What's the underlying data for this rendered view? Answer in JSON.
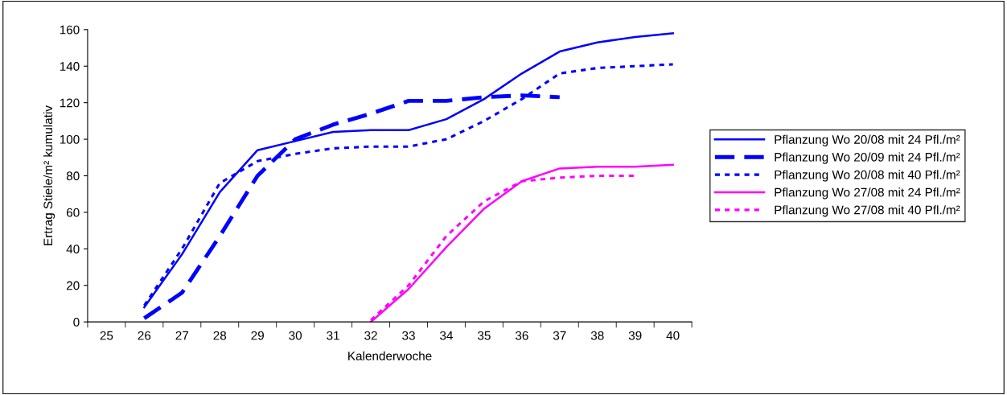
{
  "chart_data": {
    "type": "line",
    "xlabel": "Kalenderwoche",
    "ylabel": "Ertrag Stiele/m² kumulativ",
    "categories": [
      "25",
      "26",
      "27",
      "28",
      "29",
      "30",
      "31",
      "32",
      "33",
      "34",
      "35",
      "36",
      "37",
      "38",
      "39",
      "40"
    ],
    "ylim": [
      0,
      160
    ],
    "yticks": [
      0,
      20,
      40,
      60,
      80,
      100,
      120,
      140,
      160
    ],
    "grid": false,
    "legend": "right",
    "marker": "none",
    "series": [
      {
        "name": "Pflanzung Wo 20/08 mit 24 Pfl./m²",
        "color": "#0000ff",
        "line_style": "solid",
        "values": [
          null,
          8,
          37,
          71,
          94,
          99,
          104,
          105,
          105,
          111,
          122,
          136,
          148,
          153,
          156,
          158
        ]
      },
      {
        "name": "Pflanzung Wo 20/09 mit 24 Pfl./m²",
        "color": "#0000ff",
        "line_style": "dashed",
        "values": [
          null,
          2,
          16,
          47,
          80,
          100,
          108,
          114,
          121,
          121,
          123,
          124,
          123,
          null,
          null,
          null
        ]
      },
      {
        "name": "Pflanzung Wo 20/08 mit 40 Pfl./m²",
        "color": "#0000ff",
        "line_style": "dotted",
        "values": [
          null,
          9,
          40,
          76,
          88,
          92,
          95,
          96,
          96,
          100,
          110,
          122,
          136,
          139,
          140,
          141
        ]
      },
      {
        "name": "Pflanzung Wo 27/08 mit 24 Pfl./m²",
        "color": "#ff00ff",
        "line_style": "solid",
        "values": [
          null,
          null,
          null,
          null,
          null,
          null,
          null,
          0,
          18,
          41,
          62,
          77,
          84,
          85,
          85,
          86
        ]
      },
      {
        "name": "Pflanzung Wo 27/08 mit 40 Pfl./m²",
        "color": "#ff00ff",
        "line_style": "dotted",
        "values": [
          null,
          null,
          null,
          null,
          null,
          null,
          null,
          1,
          20,
          47,
          66,
          77,
          79,
          80,
          80,
          null
        ]
      }
    ]
  }
}
